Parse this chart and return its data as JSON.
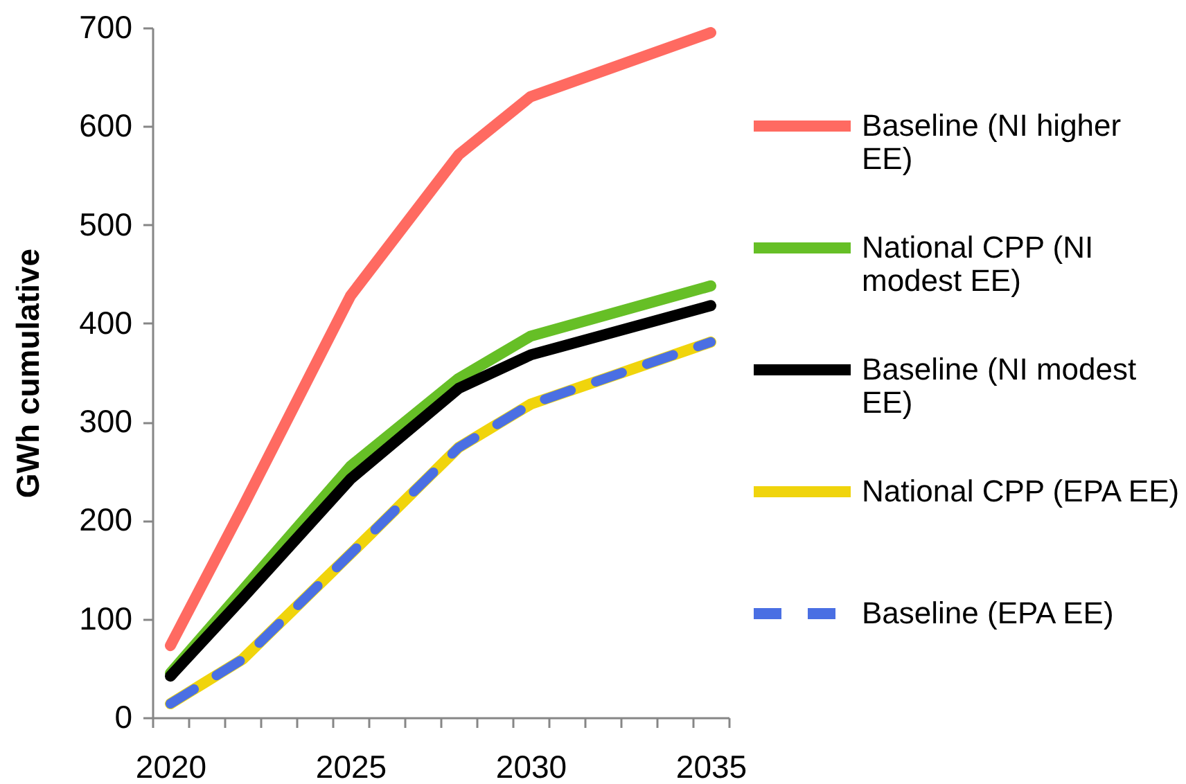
{
  "chart_data": {
    "type": "line",
    "ylabel": "GWh cumulative",
    "x": [
      2020,
      2022,
      2025,
      2028,
      2030,
      2035
    ],
    "xlim": [
      2019.5,
      2035.5
    ],
    "xticks": [
      {
        "value": 2019.5,
        "label": null
      },
      2020,
      {
        "value": 2020.5,
        "label": null
      },
      {
        "value": 2021.5,
        "label": null
      },
      {
        "value": 2022.5,
        "label": null
      },
      {
        "value": 2023.5,
        "label": null
      },
      {
        "value": 2024.5,
        "label": null
      },
      2025,
      {
        "value": 2025.5,
        "label": null
      },
      {
        "value": 2026.5,
        "label": null
      },
      {
        "value": 2027.5,
        "label": null
      },
      {
        "value": 2028.5,
        "label": null
      },
      {
        "value": 2029.5,
        "label": null
      },
      2030,
      {
        "value": 2030.5,
        "label": null
      },
      {
        "value": 2031.5,
        "label": null
      },
      {
        "value": 2032.5,
        "label": null
      },
      {
        "value": 2033.5,
        "label": null
      },
      {
        "value": 2034.5,
        "label": null
      },
      2035,
      {
        "value": 2035.5,
        "label": null
      }
    ],
    "ylim": [
      0,
      700
    ],
    "yticks": [
      0,
      100,
      200,
      300,
      400,
      500,
      600,
      700
    ],
    "grid": false,
    "legend": "right",
    "line_style": "solid",
    "series": [
      {
        "name": "Baseline (NI higher EE)",
        "color": "#ff6a61",
        "values": [
          73,
          213,
          428,
          571,
          630,
          695
        ]
      },
      {
        "name": "National CPP (NI modest EE)",
        "color": "#66bf26",
        "values": [
          45,
          129,
          255,
          344,
          387,
          438
        ]
      },
      {
        "name": "Baseline (NI modest EE)",
        "color": "#000000",
        "values": [
          42,
          121,
          242,
          334,
          368,
          418
        ]
      },
      {
        "name": "National CPP (EPA EE)",
        "color": "#f0d40c",
        "values": [
          14,
          59,
          166,
          274,
          318,
          381
        ]
      },
      {
        "name": "Baseline (EPA EE)",
        "color": "#4a6fe3",
        "values": [
          14,
          59,
          166,
          274,
          318,
          381
        ],
        "line_style": "dashed"
      }
    ]
  }
}
